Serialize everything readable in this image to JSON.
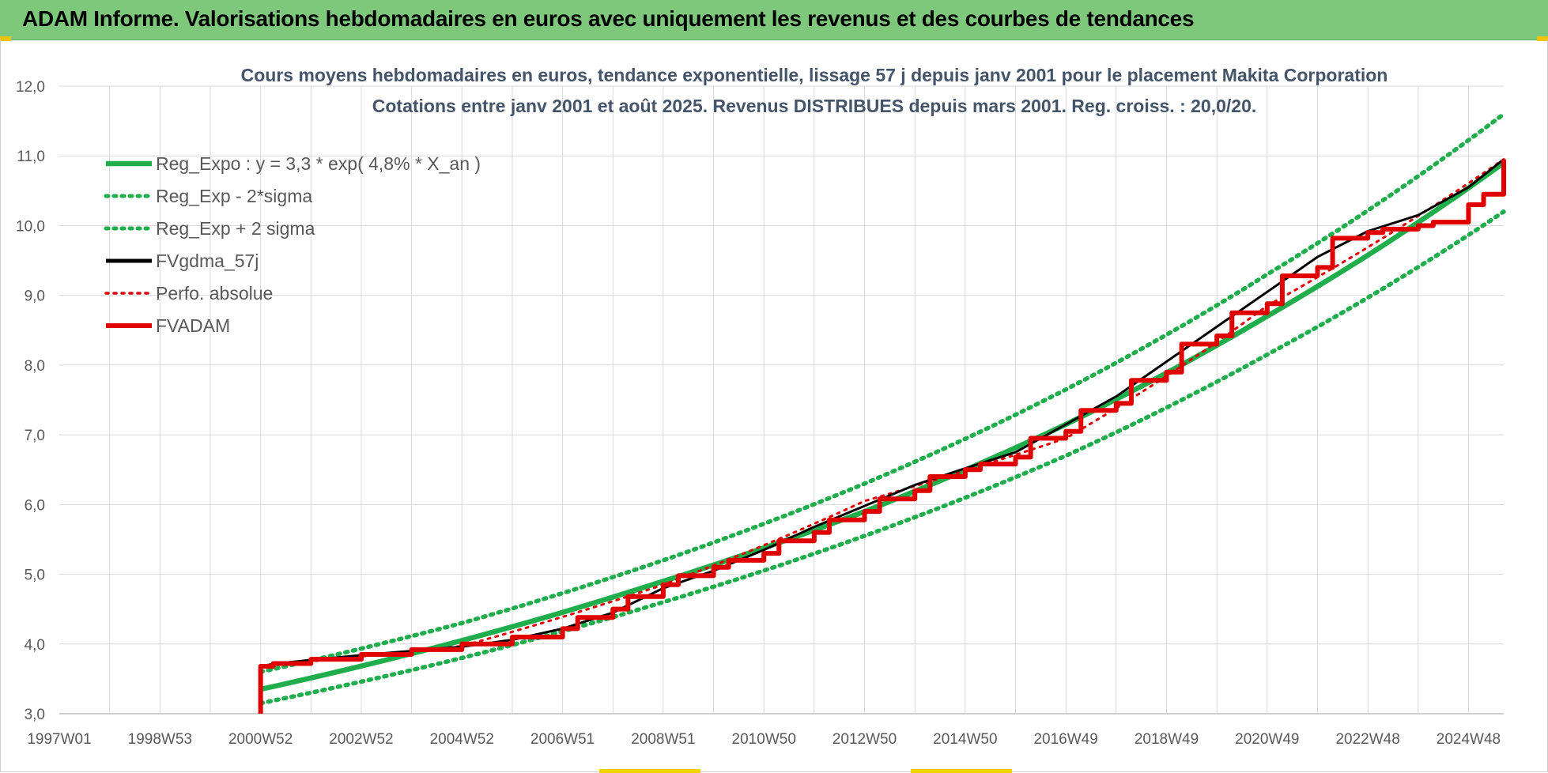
{
  "banner": {
    "title": "ADAM Informe. Valorisations hebdomadaires en euros avec uniquement les revenus et des courbes de tendances"
  },
  "colors": {
    "banner_bg": "#7ec87c",
    "reg_expo": "#1fae4b",
    "black": "#000000",
    "red": "#e00000",
    "grid": "#d9d9d9"
  },
  "chart_data": {
    "type": "line",
    "title": "Cours moyens hebdomadaires en euros, tendance exponentielle, lissage 57 j depuis janv 2001  pour le placement Makita Corporation",
    "subtitle": "Cotations entre janv 2001 et août 2025.  Revenus DISTRIBUES depuis mars 2001. Reg. croiss. : 20,0/20.",
    "xlabel": "",
    "ylabel": "",
    "x_axis": {
      "type": "date",
      "range": [
        "1997-01",
        "2025-08"
      ],
      "tick_labels": [
        "1997W01",
        "1998W53",
        "2000W52",
        "2002W52",
        "2004W52",
        "2006W51",
        "2008W51",
        "2010W50",
        "2012W50",
        "2014W50",
        "2016W49",
        "2018W49",
        "2020W49",
        "2022W48",
        "2024W48"
      ],
      "tick_years": [
        1997.0,
        1999.0,
        2001.0,
        2003.0,
        2005.0,
        2007.0,
        2009.0,
        2011.0,
        2013.0,
        2015.0,
        2017.0,
        2019.0,
        2021.0,
        2023.0,
        2025.0
      ]
    },
    "y_axis": {
      "range": [
        3.0,
        12.0
      ],
      "ticks": [
        "3,0",
        "4,0",
        "5,0",
        "6,0",
        "7,0",
        "8,0",
        "9,0",
        "10,0",
        "11,0",
        "12,0"
      ]
    },
    "grid": true,
    "legend_position": "top-left",
    "series": [
      {
        "name": "Reg_Expo : y = 3,3 * exp( 4,8% *  X_an )",
        "style": "solid",
        "color": "#1fae4b",
        "x": [
          2001.0,
          2005.0,
          2009.0,
          2013.0,
          2017.0,
          2021.0,
          2025.7
        ],
        "y": [
          3.35,
          4.05,
          4.9,
          5.9,
          7.15,
          8.7,
          10.9
        ]
      },
      {
        "name": "Reg_Exp - 2*sigma",
        "style": "dotted",
        "color": "#1fae4b",
        "x": [
          2001.0,
          2005.0,
          2009.0,
          2013.0,
          2017.0,
          2021.0,
          2025.7
        ],
        "y": [
          3.15,
          3.8,
          4.6,
          5.55,
          6.7,
          8.15,
          10.2
        ]
      },
      {
        "name": "Reg_Exp + 2 sigma",
        "style": "dotted",
        "color": "#1fae4b",
        "x": [
          2001.0,
          2005.0,
          2009.0,
          2013.0,
          2017.0,
          2021.0,
          2025.7
        ],
        "y": [
          3.6,
          4.3,
          5.2,
          6.3,
          7.65,
          9.3,
          11.6
        ]
      },
      {
        "name": "FVgdma_57j",
        "style": "solid",
        "color": "#000000",
        "x": [
          2001.0,
          2001.3,
          2002.0,
          2003.0,
          2004.0,
          2005.0,
          2006.0,
          2007.0,
          2008.0,
          2009.0,
          2010.0,
          2011.0,
          2012.0,
          2013.0,
          2014.0,
          2015.0,
          2016.0,
          2017.0,
          2018.0,
          2019.0,
          2020.0,
          2021.0,
          2022.0,
          2023.0,
          2024.0,
          2025.0,
          2025.7
        ],
        "y": [
          3.68,
          3.72,
          3.77,
          3.84,
          3.9,
          3.96,
          4.06,
          4.22,
          4.45,
          4.8,
          5.05,
          5.35,
          5.68,
          5.98,
          6.28,
          6.52,
          6.75,
          7.15,
          7.55,
          8.05,
          8.55,
          9.05,
          9.55,
          9.92,
          10.15,
          10.55,
          10.95
        ]
      },
      {
        "name": "Perfo. absolue",
        "style": "dotted",
        "color": "#e00000",
        "x": [
          2001.0,
          2005.0,
          2009.0,
          2013.0,
          2017.0,
          2021.0,
          2025.7
        ],
        "y": [
          3.68,
          3.97,
          4.85,
          6.05,
          6.95,
          8.85,
          10.95
        ]
      },
      {
        "name": "FVADAM",
        "style": "step",
        "color": "#e00000",
        "x": [
          2001.0,
          2001.0,
          2001.25,
          2002.0,
          2003.0,
          2004.0,
          2005.0,
          2006.0,
          2007.0,
          2007.3,
          2008.0,
          2008.3,
          2009.0,
          2009.3,
          2010.0,
          2010.3,
          2011.0,
          2011.3,
          2012.0,
          2012.3,
          2013.0,
          2013.3,
          2014.0,
          2014.3,
          2015.0,
          2015.3,
          2016.0,
          2016.3,
          2017.0,
          2017.3,
          2018.0,
          2018.3,
          2019.0,
          2019.3,
          2020.0,
          2020.3,
          2021.0,
          2021.3,
          2022.0,
          2022.3,
          2023.0,
          2023.3,
          2024.0,
          2024.3,
          2025.0,
          2025.3,
          2025.7
        ],
        "y": [
          3.0,
          3.68,
          3.72,
          3.78,
          3.85,
          3.92,
          4.0,
          4.1,
          4.22,
          4.38,
          4.5,
          4.68,
          4.85,
          4.98,
          5.1,
          5.2,
          5.3,
          5.48,
          5.6,
          5.78,
          5.9,
          6.08,
          6.2,
          6.4,
          6.5,
          6.58,
          6.68,
          6.95,
          7.05,
          7.35,
          7.45,
          7.78,
          7.9,
          8.3,
          8.42,
          8.75,
          8.88,
          9.28,
          9.4,
          9.82,
          9.9,
          9.95,
          10.0,
          10.05,
          10.3,
          10.45,
          10.95
        ]
      }
    ]
  }
}
